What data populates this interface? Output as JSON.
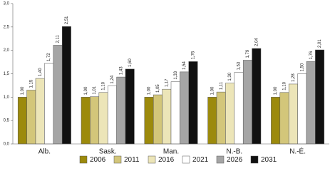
{
  "chart_data": {
    "type": "bar",
    "categories": [
      "Alb.",
      "Sask.",
      "Man.",
      "N.-B.",
      "N.-É."
    ],
    "series": [
      {
        "name": "2006",
        "color": "#9c8a0c",
        "values": [
          1.0,
          1.0,
          1.0,
          1.0,
          1.0
        ],
        "value_labels": [
          "1,00",
          "1,00",
          "1,00",
          "1,00",
          "1,00"
        ]
      },
      {
        "name": "2011",
        "color": "#d3c67a",
        "values": [
          1.15,
          1.01,
          1.05,
          1.11,
          1.1
        ],
        "value_labels": [
          "1,15",
          "1,01",
          "1,05",
          "1,11",
          "1,10"
        ]
      },
      {
        "name": "2016",
        "color": "#ece5b8",
        "values": [
          1.4,
          1.1,
          1.17,
          1.3,
          1.28
        ],
        "value_labels": [
          "1,40",
          "1,10",
          "1,17",
          "1,30",
          "1,28"
        ]
      },
      {
        "name": "2021",
        "color": "#ffffff",
        "values": [
          1.72,
          1.24,
          1.33,
          1.53,
          1.5
        ],
        "value_labels": [
          "1,72",
          "1,24",
          "1,33",
          "1,53",
          "1,50"
        ]
      },
      {
        "name": "2026",
        "color": "#a5a5a5",
        "values": [
          2.11,
          1.43,
          1.54,
          1.79,
          1.76
        ],
        "value_labels": [
          "2,11",
          "1,43",
          "1,54",
          "1,79",
          "1,76"
        ]
      },
      {
        "name": "2031",
        "color": "#111111",
        "values": [
          2.51,
          1.6,
          1.76,
          2.04,
          2.01
        ],
        "value_labels": [
          "2,51",
          "1,60",
          "1,76",
          "2,04",
          "2,01"
        ]
      }
    ],
    "ylim": [
      0,
      3
    ],
    "yticks": [
      {
        "value": 0,
        "label": "0,0"
      },
      {
        "value": 0.5,
        "label": "0,5"
      },
      {
        "value": 1,
        "label": "1,0"
      },
      {
        "value": 1.5,
        "label": "1,5"
      },
      {
        "value": 2,
        "label": "2,0"
      },
      {
        "value": 2.5,
        "label": "2,5"
      },
      {
        "value": 3,
        "label": "3,0"
      }
    ],
    "grid": false,
    "legend": "bottom"
  }
}
